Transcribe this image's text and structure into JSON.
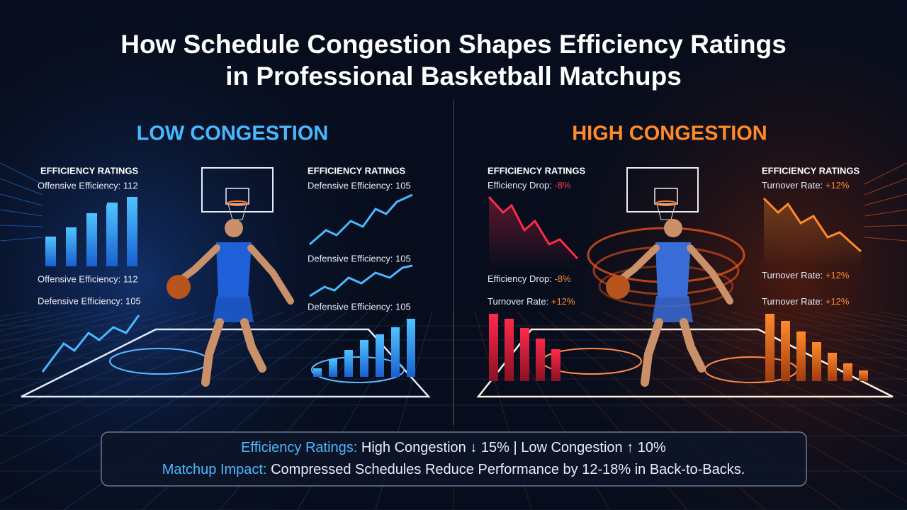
{
  "header": {
    "title_lines": [
      "How Schedule Congestion Shapes Efficiency Ratings",
      "in Professional Basketball Matchups"
    ]
  },
  "low_congestion": {
    "heading": "LOW CONGESTION",
    "left_panel": {
      "title": "EFFICIENCY RATINGS",
      "labels": [
        "Offensive Efficiency: 112",
        "Offensive Efficiency: 112",
        "Defensive Efficiency: 105"
      ]
    },
    "right_panel": {
      "title": "EFFICIENCY RATINGS",
      "labels": [
        "Defensive Efficiency: 105",
        "Defensive Efficiency: 105",
        "Defensive Efficiency: 105"
      ]
    }
  },
  "high_congestion": {
    "heading": "HIGH CONGESTION",
    "left_panel": {
      "title": "EFFICIENCY RATINGS",
      "labels": [
        {
          "label": "Efficiency Drop:",
          "value": "-8%"
        },
        {
          "label": "Efficiency Drop:",
          "value": "-8%"
        },
        {
          "label": "Turnover Rate:",
          "value": "+12%"
        }
      ]
    },
    "right_panel": {
      "title": "EFFICIENCY RATINGS",
      "labels": [
        {
          "label": "Turnover Rate:",
          "value": "+12%"
        },
        {
          "label": "Turnover Rate:",
          "value": "+12%"
        },
        {
          "label": "Turnover Rate:",
          "value": "+12%"
        }
      ]
    }
  },
  "summary": {
    "line1": {
      "key": "Efficiency Ratings:",
      "high": "High Congestion ↓ 15%",
      "separator": "|",
      "low": "Low Congestion ↑ 10%"
    },
    "line2": {
      "key": "Matchup Impact:",
      "text": "Compressed Schedules Reduce Performance by 12-18% in Back-to-Backs."
    }
  }
}
